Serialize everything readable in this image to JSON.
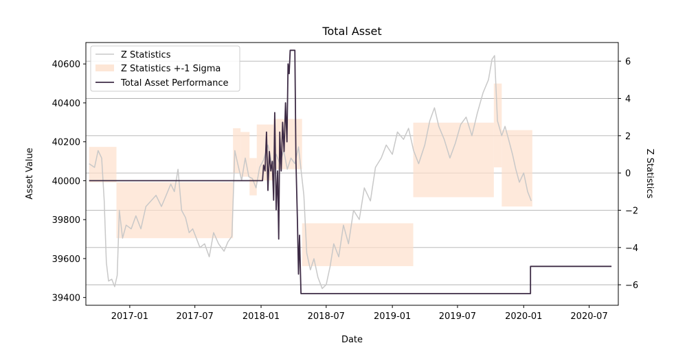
{
  "chart_data": {
    "type": "line",
    "title": "Total Asset",
    "xlabel": "Date",
    "ylabel_left": "Asset Value",
    "ylabel_right": "Z Statistics",
    "grid": "right-axis horizontal lines",
    "legend_position": "top-left",
    "x_range": [
      "2016-09-01",
      "2020-09-20"
    ],
    "x_ticks": [
      "2017-01",
      "2017-07",
      "2018-01",
      "2018-07",
      "2019-01",
      "2019-07",
      "2020-01",
      "2020-07"
    ],
    "y_left_range": [
      39360,
      40710
    ],
    "y_left_ticks": [
      39400,
      39600,
      39800,
      40000,
      40200,
      40400,
      40600
    ],
    "y_right_range": [
      -7.1,
      7.0
    ],
    "y_right_ticks": [
      -6,
      -4,
      -2,
      0,
      2,
      4,
      6
    ],
    "legend": [
      "Z Statistics",
      "Z Statistics +-1 Sigma",
      "Total Asset Performance"
    ],
    "colors": {
      "z_line": "#c8c8c8",
      "sigma_fill": "#fde0cc",
      "asset_line": "#3d2b45",
      "grid": "#b0b0b0"
    },
    "series": [
      {
        "name": "Z Statistics",
        "axis": "right",
        "points": [
          [
            "2016-09-10",
            0.5
          ],
          [
            "2016-09-25",
            0.3
          ],
          [
            "2016-10-05",
            1.2
          ],
          [
            "2016-10-15",
            0.8
          ],
          [
            "2016-10-22",
            -1.5
          ],
          [
            "2016-10-28",
            -4.8
          ],
          [
            "2016-11-03",
            -5.8
          ],
          [
            "2016-11-12",
            -5.7
          ],
          [
            "2016-11-20",
            -6.1
          ],
          [
            "2016-11-27",
            -5.5
          ],
          [
            "2016-12-03",
            -2.0
          ],
          [
            "2016-12-12",
            -3.5
          ],
          [
            "2016-12-22",
            -2.8
          ],
          [
            "2017-01-05",
            -3.0
          ],
          [
            "2017-01-18",
            -2.3
          ],
          [
            "2017-02-01",
            -3.0
          ],
          [
            "2017-02-15",
            -1.8
          ],
          [
            "2017-03-01",
            -1.5
          ],
          [
            "2017-03-15",
            -1.2
          ],
          [
            "2017-03-30",
            -1.8
          ],
          [
            "2017-04-10",
            -1.3
          ],
          [
            "2017-04-25",
            -0.6
          ],
          [
            "2017-05-05",
            -1.0
          ],
          [
            "2017-05-15",
            0.2
          ],
          [
            "2017-05-25",
            -2.0
          ],
          [
            "2017-06-05",
            -2.4
          ],
          [
            "2017-06-15",
            -3.2
          ],
          [
            "2017-06-25",
            -3.0
          ],
          [
            "2017-07-05",
            -3.5
          ],
          [
            "2017-07-15",
            -4.0
          ],
          [
            "2017-07-28",
            -3.8
          ],
          [
            "2017-08-10",
            -4.5
          ],
          [
            "2017-08-22",
            -3.2
          ],
          [
            "2017-09-05",
            -3.8
          ],
          [
            "2017-09-20",
            -4.2
          ],
          [
            "2017-10-01",
            -3.7
          ],
          [
            "2017-10-12",
            -3.4
          ],
          [
            "2017-10-20",
            1.2
          ],
          [
            "2017-10-28",
            0.5
          ],
          [
            "2017-11-08",
            -0.4
          ],
          [
            "2017-11-18",
            0.8
          ],
          [
            "2017-11-28",
            -0.2
          ],
          [
            "2017-12-08",
            -0.3
          ],
          [
            "2017-12-18",
            -0.8
          ],
          [
            "2017-12-28",
            0.3
          ],
          [
            "2018-01-08",
            0.7
          ],
          [
            "2018-01-20",
            1.5
          ],
          [
            "2018-02-01",
            0.4
          ],
          [
            "2018-02-12",
            1.0
          ],
          [
            "2018-02-22",
            0.5
          ],
          [
            "2018-03-05",
            1.2
          ],
          [
            "2018-03-15",
            0.2
          ],
          [
            "2018-03-25",
            0.8
          ],
          [
            "2018-04-05",
            0.5
          ],
          [
            "2018-04-15",
            1.4
          ],
          [
            "2018-04-22",
            0.2
          ],
          [
            "2018-04-30",
            -1.2
          ],
          [
            "2018-05-08",
            -4.3
          ],
          [
            "2018-05-18",
            -5.2
          ],
          [
            "2018-05-28",
            -4.6
          ],
          [
            "2018-06-08",
            -5.6
          ],
          [
            "2018-06-20",
            -6.2
          ],
          [
            "2018-07-01",
            -6.0
          ],
          [
            "2018-07-12",
            -5.0
          ],
          [
            "2018-07-22",
            -3.8
          ],
          [
            "2018-08-05",
            -4.5
          ],
          [
            "2018-08-18",
            -2.8
          ],
          [
            "2018-09-01",
            -3.8
          ],
          [
            "2018-09-15",
            -2.0
          ],
          [
            "2018-10-01",
            -2.5
          ],
          [
            "2018-10-15",
            -0.8
          ],
          [
            "2018-11-01",
            -1.5
          ],
          [
            "2018-11-15",
            0.3
          ],
          [
            "2018-12-01",
            0.8
          ],
          [
            "2018-12-15",
            1.5
          ],
          [
            "2019-01-01",
            1.0
          ],
          [
            "2019-01-15",
            2.2
          ],
          [
            "2019-02-01",
            1.8
          ],
          [
            "2019-02-15",
            2.4
          ],
          [
            "2019-03-01",
            1.2
          ],
          [
            "2019-03-15",
            0.5
          ],
          [
            "2019-04-01",
            1.5
          ],
          [
            "2019-04-15",
            2.8
          ],
          [
            "2019-04-28",
            3.5
          ],
          [
            "2019-05-10",
            2.5
          ],
          [
            "2019-05-25",
            1.8
          ],
          [
            "2019-06-10",
            0.8
          ],
          [
            "2019-06-25",
            1.6
          ],
          [
            "2019-07-10",
            2.6
          ],
          [
            "2019-07-25",
            3.0
          ],
          [
            "2019-08-10",
            2.0
          ],
          [
            "2019-08-25",
            3.2
          ],
          [
            "2019-09-10",
            4.3
          ],
          [
            "2019-09-25",
            5.0
          ],
          [
            "2019-10-05",
            6.1
          ],
          [
            "2019-10-12",
            6.3
          ],
          [
            "2019-10-20",
            2.8
          ],
          [
            "2019-11-01",
            2.0
          ],
          [
            "2019-11-10",
            2.5
          ],
          [
            "2019-11-20",
            1.8
          ],
          [
            "2019-12-01",
            1.0
          ],
          [
            "2019-12-10",
            0.2
          ],
          [
            "2019-12-20",
            -0.5
          ],
          [
            "2020-01-01",
            0.0
          ],
          [
            "2020-01-12",
            -1.0
          ],
          [
            "2020-01-22",
            -1.5
          ]
        ]
      },
      {
        "name": "Z Statistics +-1 Sigma",
        "axis": "right",
        "type": "band",
        "segments": [
          {
            "start": "2016-09-10",
            "end": "2016-11-25",
            "low": -0.5,
            "high": 1.4
          },
          {
            "start": "2016-11-25",
            "end": "2017-10-15",
            "low": -3.5,
            "high": -0.5
          },
          {
            "start": "2017-10-15",
            "end": "2017-11-05",
            "low": 0.0,
            "high": 2.4
          },
          {
            "start": "2017-11-05",
            "end": "2017-11-30",
            "low": -0.2,
            "high": 2.2
          },
          {
            "start": "2017-11-30",
            "end": "2017-12-20",
            "low": -1.2,
            "high": 0.8
          },
          {
            "start": "2017-12-20",
            "end": "2018-02-05",
            "low": -0.4,
            "high": 2.6
          },
          {
            "start": "2018-02-05",
            "end": "2018-04-25",
            "low": 0.2,
            "high": 2.9
          },
          {
            "start": "2018-04-25",
            "end": "2019-02-28",
            "low": -5.0,
            "high": -2.7
          },
          {
            "start": "2019-02-28",
            "end": "2019-10-10",
            "low": -1.3,
            "high": 2.7
          },
          {
            "start": "2019-10-10",
            "end": "2019-11-01",
            "low": 0.3,
            "high": 4.8
          },
          {
            "start": "2019-11-01",
            "end": "2020-01-25",
            "low": -1.8,
            "high": 2.3
          }
        ]
      },
      {
        "name": "Total Asset Performance",
        "axis": "left",
        "points": [
          [
            "2016-09-10",
            40000
          ],
          [
            "2017-12-25",
            40000
          ],
          [
            "2018-01-05",
            40000
          ],
          [
            "2018-01-08",
            40080
          ],
          [
            "2018-01-12",
            40050
          ],
          [
            "2018-01-16",
            40250
          ],
          [
            "2018-01-20",
            39950
          ],
          [
            "2018-01-24",
            40150
          ],
          [
            "2018-01-28",
            40050
          ],
          [
            "2018-02-01",
            40100
          ],
          [
            "2018-02-05",
            39900
          ],
          [
            "2018-02-08",
            40350
          ],
          [
            "2018-02-12",
            39850
          ],
          [
            "2018-02-16",
            40050
          ],
          [
            "2018-02-19",
            39700
          ],
          [
            "2018-02-22",
            40250
          ],
          [
            "2018-02-26",
            40050
          ],
          [
            "2018-03-02",
            40300
          ],
          [
            "2018-03-06",
            40150
          ],
          [
            "2018-03-10",
            40400
          ],
          [
            "2018-03-14",
            40200
          ],
          [
            "2018-03-17",
            40600
          ],
          [
            "2018-03-20",
            40550
          ],
          [
            "2018-03-23",
            40670
          ],
          [
            "2018-04-05",
            40670
          ],
          [
            "2018-04-08",
            40100
          ],
          [
            "2018-04-12",
            39800
          ],
          [
            "2018-04-15",
            39520
          ],
          [
            "2018-04-18",
            39720
          ],
          [
            "2018-04-22",
            39420
          ],
          [
            "2020-01-20",
            39420
          ],
          [
            "2020-01-20",
            39560
          ],
          [
            "2020-09-01",
            39560
          ]
        ]
      }
    ]
  }
}
